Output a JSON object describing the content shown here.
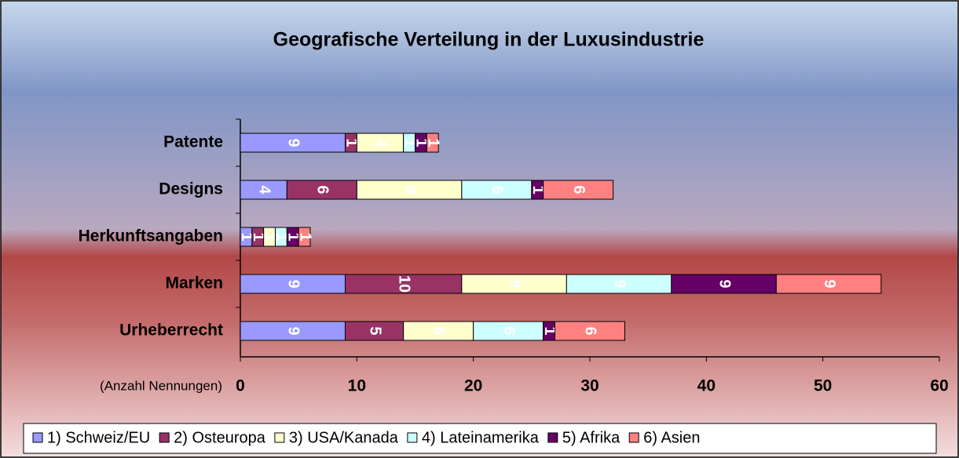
{
  "chart_data": {
    "type": "stacked_bar_horizontal",
    "title": "Geografische Verteilung in der Luxusindustrie",
    "x_label": "(Anzahl Nennungen)",
    "categories": [
      "Patente",
      "Designs",
      "Herkunftsangaben",
      "Marken",
      "Urheberrecht"
    ],
    "series": [
      {
        "name": "1) Schweiz/EU",
        "color": "#9999ff",
        "values": [
          9,
          4,
          1,
          9,
          9
        ]
      },
      {
        "name": "2) Osteuropa",
        "color": "#993366",
        "values": [
          1,
          6,
          1,
          10,
          5
        ]
      },
      {
        "name": "3) USA/Kanada",
        "color": "#ffffcc",
        "values": [
          4,
          9,
          1,
          9,
          6
        ]
      },
      {
        "name": "4) Lateinamerika",
        "color": "#ccffff",
        "values": [
          1,
          6,
          1,
          9,
          6
        ]
      },
      {
        "name": "5) Afrika",
        "color": "#660066",
        "values": [
          1,
          1,
          1,
          9,
          1
        ]
      },
      {
        "name": "6) Asien",
        "color": "#ff8080",
        "values": [
          1,
          6,
          1,
          9,
          6
        ]
      }
    ],
    "xlim": [
      0,
      60
    ],
    "xticks": [
      0,
      10,
      20,
      30,
      40,
      50,
      60
    ],
    "legend": "bottom"
  }
}
